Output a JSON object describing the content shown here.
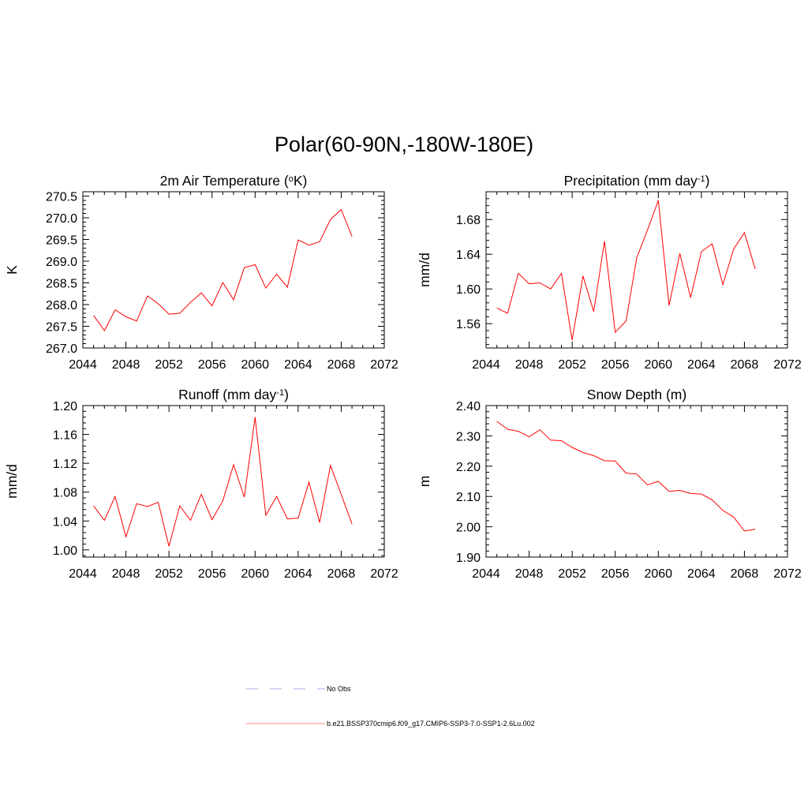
{
  "title": "Polar(60-90N,-180W-180E)",
  "chart_data": [
    {
      "type": "line",
      "title": "2m Air Temperature (°K)",
      "title_parts": [
        "2m Air Temperature (",
        "o",
        "K)"
      ],
      "ylabel": "K",
      "xlim": [
        2044,
        2072
      ],
      "ylim": [
        267.0,
        270.6
      ],
      "xticks": [
        2044,
        2048,
        2052,
        2056,
        2060,
        2064,
        2068,
        2072
      ],
      "xtick_labels": [
        "2044",
        "2048",
        "2052",
        "2056",
        "2060",
        "2064",
        "2068",
        "2072"
      ],
      "yticks": [
        267.0,
        267.5,
        268.0,
        268.5,
        269.0,
        269.5,
        270.0,
        270.5
      ],
      "ytick_labels": [
        "267.0",
        "267.5",
        "268.0",
        "268.5",
        "269.0",
        "269.5",
        "270.0",
        "270.5"
      ],
      "x": [
        2045,
        2046,
        2047,
        2048,
        2049,
        2050,
        2051,
        2052,
        2053,
        2054,
        2055,
        2056,
        2057,
        2058,
        2059,
        2060,
        2061,
        2062,
        2063,
        2064,
        2065,
        2066,
        2067,
        2068,
        2069
      ],
      "series": [
        {
          "name": "b.e21.BSSP370cmip6.f09_g17.CMIP6-SSP3-7.0-SSP1-2.6Lu.002",
          "color": "#ff0000",
          "values": [
            267.75,
            267.4,
            267.88,
            267.72,
            267.62,
            268.2,
            268.02,
            267.78,
            267.8,
            268.05,
            268.27,
            267.97,
            268.51,
            268.11,
            268.85,
            268.92,
            268.38,
            268.7,
            268.4,
            269.49,
            269.37,
            269.45,
            269.96,
            270.19,
            269.57
          ]
        }
      ]
    },
    {
      "type": "line",
      "title": "Precipitation (mm day-1)",
      "title_parts": [
        "Precipitation (mm day",
        "-1",
        ")"
      ],
      "ylabel": "mm/d",
      "xlim": [
        2044,
        2072
      ],
      "ylim": [
        1.532,
        1.712
      ],
      "xticks": [
        2044,
        2048,
        2052,
        2056,
        2060,
        2064,
        2068,
        2072
      ],
      "xtick_labels": [
        "2044",
        "2048",
        "2052",
        "2056",
        "2060",
        "2064",
        "2068",
        "2072"
      ],
      "yticks": [
        1.56,
        1.6,
        1.64,
        1.68
      ],
      "ytick_labels": [
        "1.56",
        "1.60",
        "1.64",
        "1.68"
      ],
      "x": [
        2045,
        2046,
        2047,
        2048,
        2049,
        2050,
        2051,
        2052,
        2053,
        2054,
        2055,
        2056,
        2057,
        2058,
        2059,
        2060,
        2061,
        2062,
        2063,
        2064,
        2065,
        2066,
        2067,
        2068,
        2069
      ],
      "series": [
        {
          "name": "b.e21.BSSP370cmip6.f09_g17.CMIP6-SSP3-7.0-SSP1-2.6Lu.002",
          "color": "#ff0000",
          "values": [
            1.578,
            1.572,
            1.618,
            1.606,
            1.607,
            1.6,
            1.618,
            1.541,
            1.615,
            1.574,
            1.655,
            1.55,
            1.563,
            1.636,
            1.668,
            1.702,
            1.581,
            1.641,
            1.59,
            1.643,
            1.652,
            1.605,
            1.646,
            1.665,
            1.623
          ]
        }
      ]
    },
    {
      "type": "line",
      "title": "Runoff (mm day-1)",
      "title_parts": [
        "Runoff (mm day",
        "-1",
        ")"
      ],
      "ylabel": "mm/d",
      "xlim": [
        2044,
        2072
      ],
      "ylim": [
        0.99,
        1.2
      ],
      "xticks": [
        2044,
        2048,
        2052,
        2056,
        2060,
        2064,
        2068,
        2072
      ],
      "xtick_labels": [
        "2044",
        "2048",
        "2052",
        "2056",
        "2060",
        "2064",
        "2068",
        "2072"
      ],
      "yticks": [
        1.0,
        1.04,
        1.08,
        1.12,
        1.16,
        1.2
      ],
      "ytick_labels": [
        "1.00",
        "1.04",
        "1.08",
        "1.12",
        "1.16",
        "1.20"
      ],
      "x": [
        2045,
        2046,
        2047,
        2048,
        2049,
        2050,
        2051,
        2052,
        2053,
        2054,
        2055,
        2056,
        2057,
        2058,
        2059,
        2060,
        2061,
        2062,
        2063,
        2064,
        2065,
        2066,
        2067,
        2068,
        2069
      ],
      "series": [
        {
          "name": "b.e21.BSSP370cmip6.f09_g17.CMIP6-SSP3-7.0-SSP1-2.6Lu.002",
          "color": "#ff0000",
          "values": [
            1.061,
            1.041,
            1.074,
            1.018,
            1.064,
            1.06,
            1.066,
            1.005,
            1.061,
            1.041,
            1.077,
            1.042,
            1.068,
            1.118,
            1.073,
            1.184,
            1.048,
            1.074,
            1.043,
            1.044,
            1.094,
            1.038,
            1.117,
            1.077,
            1.036
          ]
        }
      ]
    },
    {
      "type": "line",
      "title": "Snow Depth (m)",
      "title_parts": [
        "Snow Depth (m)"
      ],
      "ylabel": "m",
      "xlim": [
        2044,
        2072
      ],
      "ylim": [
        1.9,
        2.4
      ],
      "xticks": [
        2044,
        2048,
        2052,
        2056,
        2060,
        2064,
        2068,
        2072
      ],
      "xtick_labels": [
        "2044",
        "2048",
        "2052",
        "2056",
        "2060",
        "2064",
        "2068",
        "2072"
      ],
      "yticks": [
        1.9,
        2.0,
        2.1,
        2.2,
        2.3,
        2.4
      ],
      "ytick_labels": [
        "1.90",
        "2.00",
        "2.10",
        "2.20",
        "2.30",
        "2.40"
      ],
      "x": [
        2045,
        2046,
        2047,
        2048,
        2049,
        2050,
        2051,
        2052,
        2053,
        2054,
        2055,
        2056,
        2057,
        2058,
        2059,
        2060,
        2061,
        2062,
        2063,
        2064,
        2065,
        2066,
        2067,
        2068,
        2069
      ],
      "series": [
        {
          "name": "b.e21.BSSP370cmip6.f09_g17.CMIP6-SSP3-7.0-SSP1-2.6Lu.002",
          "color": "#ff0000",
          "values": [
            2.348,
            2.322,
            2.315,
            2.297,
            2.32,
            2.286,
            2.284,
            2.262,
            2.245,
            2.235,
            2.218,
            2.217,
            2.177,
            2.174,
            2.138,
            2.15,
            2.117,
            2.12,
            2.11,
            2.108,
            2.089,
            2.054,
            2.032,
            1.986,
            1.992
          ]
        }
      ]
    }
  ],
  "legend": [
    {
      "label": "No Obs",
      "color": "#aaaaee",
      "style": "dashed"
    },
    {
      "label": "b.e21.BSSP370cmip6.f09_g17.CMIP6-SSP3-7.0-SSP1-2.6Lu.002",
      "color": "#ff8080",
      "style": "solid"
    }
  ]
}
